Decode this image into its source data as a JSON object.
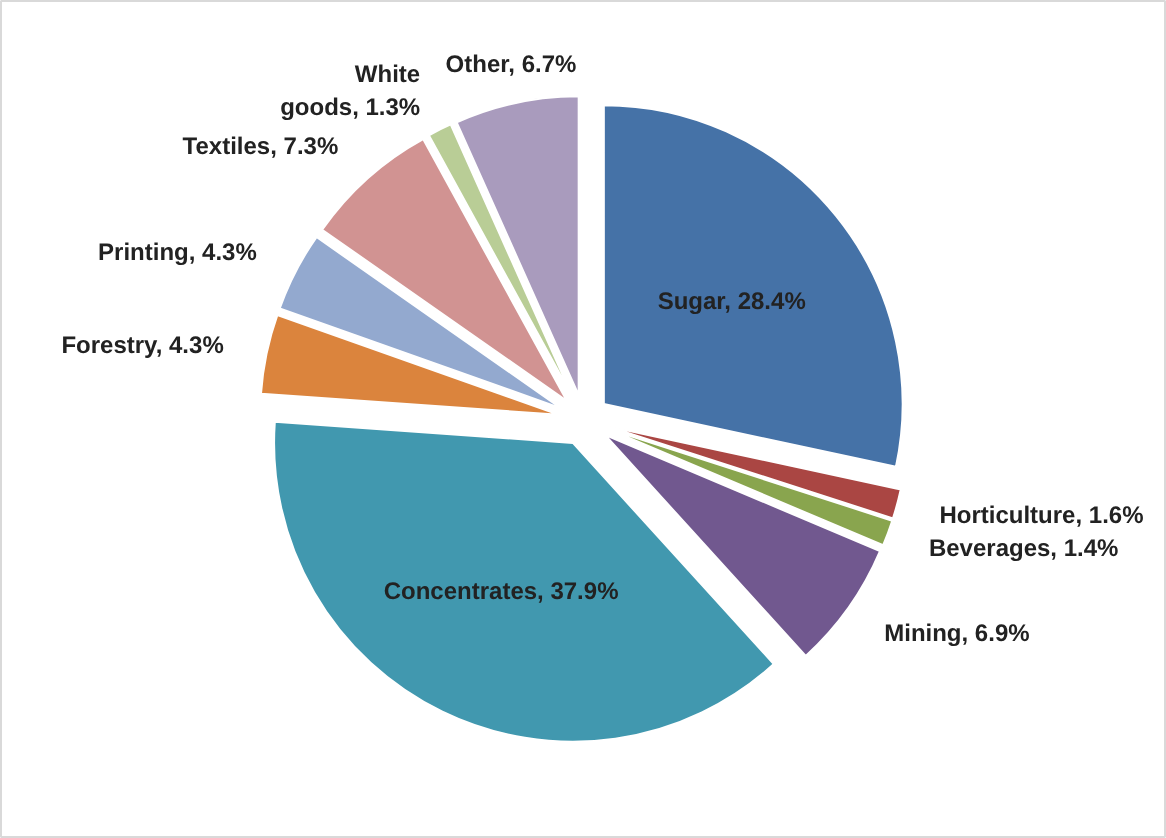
{
  "chart_data": {
    "type": "pie",
    "categories": [
      "Sugar",
      "Horticulture",
      "Beverages",
      "Mining",
      "Concentrates",
      "Forestry",
      "Printing",
      "Textiles",
      "White goods",
      "Other"
    ],
    "values": [
      28.4,
      1.6,
      1.4,
      6.9,
      37.9,
      4.3,
      4.3,
      7.3,
      1.3,
      6.7
    ],
    "value_labels": [
      "28.4%",
      "1.6%",
      "1.4%",
      "6.9%",
      "37.9%",
      "4.3%",
      "4.3%",
      "7.3%",
      "1.3%",
      "6.7%"
    ],
    "colors": [
      "#4572a7",
      "#aa4643",
      "#89a54e",
      "#71588f",
      "#4198af",
      "#db843d",
      "#93a9cf",
      "#d19392",
      "#b9cd96",
      "#a99bbd"
    ]
  }
}
